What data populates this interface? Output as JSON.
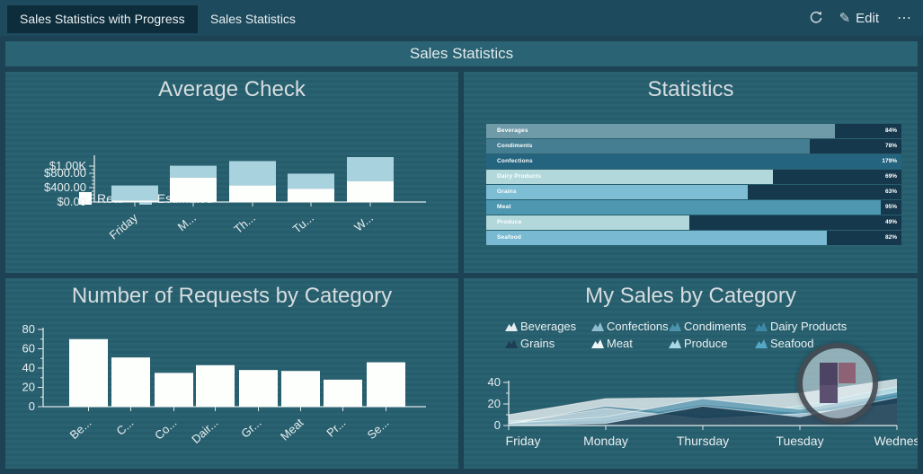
{
  "navbar": {
    "tabs": [
      {
        "label": "Sales Statistics with Progress",
        "active": true
      },
      {
        "label": "Sales Statistics",
        "active": false
      }
    ],
    "refresh_icon": "refresh",
    "edit": {
      "icon": "pencil",
      "label": "Edit"
    },
    "more_icon": "ellipsis"
  },
  "title_bar": {
    "title": "Sales Statistics"
  },
  "panels": {
    "average_check": {
      "title": "Average Check",
      "chart_data": {
        "type": "bar",
        "stacked": true,
        "categories": [
          "Friday",
          "M...",
          "Th...",
          "Tu...",
          "W..."
        ],
        "series": [
          {
            "name": "Real",
            "color": "#fdfffd",
            "values": [
              40,
              680,
              460,
              370,
              580
            ]
          },
          {
            "name": "Estimated",
            "color": "#a9d2df",
            "values": [
              420,
              330,
              680,
              420,
              670
            ]
          }
        ],
        "yticks": [
          0,
          400,
          800,
          1000
        ],
        "ylabels": [
          "$0.00",
          "$400.00",
          "$800.00",
          "$1.00K"
        ],
        "ylim": [
          0,
          1250
        ],
        "legend_position": "top"
      }
    },
    "statistics": {
      "title": "Statistics",
      "chart_data": {
        "type": "bar",
        "orientation": "horizontal-progress",
        "track_color": "#16384c",
        "rows": [
          {
            "label": "Beverages",
            "value": "84%",
            "pct": 84,
            "bar_color": "#6f9aa8"
          },
          {
            "label": "Condiments",
            "value": "78%",
            "pct": 78,
            "bar_color": "#457e92"
          },
          {
            "label": "Confections",
            "value": "179%",
            "pct": 100,
            "bar_color": "#24647e",
            "highlight": true
          },
          {
            "label": "Dairy Products",
            "value": "69%",
            "pct": 69,
            "bar_color": "#b2d8dc"
          },
          {
            "label": "Grains",
            "value": "63%",
            "pct": 63,
            "bar_color": "#7dbed5"
          },
          {
            "label": "Meat",
            "value": "95%",
            "pct": 95,
            "bar_color": "#4d97b0"
          },
          {
            "label": "Produce",
            "value": "49%",
            "pct": 49,
            "bar_color": "#b2d8dc"
          },
          {
            "label": "Seafood",
            "value": "82%",
            "pct": 82,
            "bar_color": "#79bad2"
          }
        ]
      }
    },
    "requests": {
      "title": "Number of Requests by Category",
      "chart_data": {
        "type": "bar",
        "categories": [
          "Be...",
          "C...",
          "Co...",
          "Dair...",
          "Gr...",
          "Meat",
          "Pr...",
          "Se..."
        ],
        "values": [
          70,
          51,
          35,
          43,
          38,
          37,
          28,
          46
        ],
        "bar_color": "#fdfffd",
        "yticks": [
          0,
          20,
          40,
          60,
          80
        ],
        "ylim": [
          0,
          80
        ]
      }
    },
    "my_sales": {
      "title": "My Sales by Category",
      "chart_data": {
        "type": "area",
        "x": [
          "Friday",
          "Monday",
          "Thursday",
          "Tuesday",
          "Wednes"
        ],
        "yticks": [
          0,
          20,
          40
        ],
        "ylim": [
          0,
          45
        ],
        "legend_position": "top",
        "series": [
          {
            "name": "Beverages",
            "legend_color": "#e6eef0",
            "fill": "rgba(235,242,244,0.8)",
            "values": [
              10,
              25,
              26,
              30,
              43
            ]
          },
          {
            "name": "Confections",
            "legend_color": "#8fbccd",
            "fill": "rgba(70,140,168,0.65)",
            "values": [
              2,
              8,
              25,
              15,
              31
            ]
          },
          {
            "name": "Condiments",
            "legend_color": "#4e93ad",
            "fill": "rgba(47,114,143,0.65)",
            "values": [
              1,
              18,
              10,
              13,
              26
            ]
          },
          {
            "name": "Dairy Products",
            "legend_color": "#3d89a8",
            "fill": "rgba(52,124,156,0.6)",
            "values": [
              3,
              5,
              20,
              12,
              29
            ]
          },
          {
            "name": "Grains",
            "legend_color": "#1d3e54",
            "fill": "rgba(21,52,72,0.8)",
            "values": [
              0,
              2,
              18,
              8,
              26
            ]
          },
          {
            "name": "Meat",
            "legend_color": "#f0f6f7",
            "fill": "rgba(240,246,247,0.55)",
            "values": [
              2,
              16,
              6,
              11,
              20
            ]
          },
          {
            "name": "Produce",
            "legend_color": "#a8d8e4",
            "fill": "rgba(168,216,228,0.7)",
            "values": [
              4,
              10,
              8,
              18,
              36
            ]
          },
          {
            "name": "Seafood",
            "legend_color": "#54a8c6",
            "fill": "rgba(84,168,198,0.7)",
            "values": [
              2,
              6,
              12,
              10,
              31
            ]
          }
        ],
        "draw_order": [
          0,
          6,
          7,
          2,
          3,
          1,
          5,
          4
        ]
      }
    }
  },
  "watermark": {
    "ring_color": "#2b313a",
    "inner_color": "#e9f1f4",
    "block_colors": [
      "#4c4462",
      "#5c5070",
      "#8c6274"
    ]
  },
  "theme": {
    "page_bg": "#1c4254",
    "navbar_bg": "#1d4a5d",
    "active_tab_bg": "#0d2d3c",
    "panel_bg": "#27606f",
    "band_bg": "#2a6373",
    "text_light": "#e8eef0",
    "axis_color": "#dfe8ea"
  }
}
